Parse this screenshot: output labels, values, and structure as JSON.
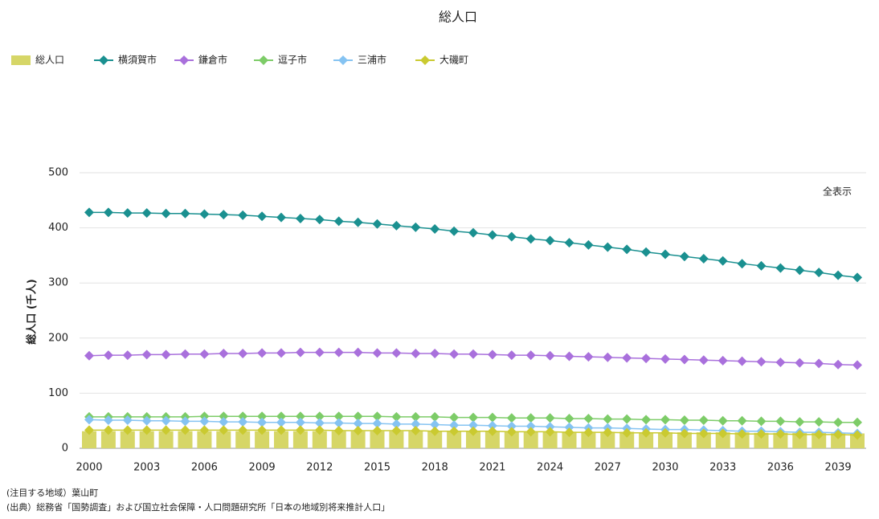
{
  "chart_data": {
    "type": "bar-line",
    "title": "総人口",
    "y_label": "総人口 (千人)",
    "button": "全表示",
    "notes": [
      "(注目する地域）葉山町",
      "(出典）総務省「国勢調査」および国立社会保障・人口問題研究所「日本の地域別将来推計人口」"
    ],
    "categories": [
      "2000",
      null,
      null,
      "2003",
      null,
      null,
      "2006",
      null,
      null,
      "2009",
      null,
      null,
      "2012",
      null,
      null,
      "2015",
      null,
      null,
      "2018",
      null,
      null,
      "2021",
      null,
      null,
      "2024",
      null,
      null,
      "2027",
      null,
      null,
      "2030",
      null,
      null,
      "2033",
      null,
      null,
      "2036",
      null,
      null,
      "2039",
      null
    ],
    "ylim": [
      0,
      500
    ],
    "yticks": [
      0,
      100,
      200,
      300,
      400,
      500
    ],
    "grid": true,
    "series": [
      {
        "name": "総人口",
        "kind": "bar",
        "color": "#d6d667",
        "values": [
          31,
          31,
          31,
          31,
          31,
          31,
          31,
          31,
          31,
          31,
          31,
          31,
          31,
          31,
          31,
          31,
          31,
          31,
          31,
          31,
          31,
          30,
          30,
          30,
          30,
          30,
          30,
          30,
          30,
          29,
          29,
          29,
          29,
          29,
          29,
          28,
          28,
          28,
          28,
          27,
          27
        ]
      },
      {
        "name": "横須賀市",
        "kind": "line",
        "color": "#1a9090",
        "values": [
          428,
          428,
          427,
          427,
          426,
          426,
          425,
          424,
          423,
          421,
          419,
          417,
          415,
          412,
          410,
          407,
          404,
          401,
          398,
          394,
          391,
          387,
          384,
          380,
          377,
          373,
          369,
          365,
          361,
          356,
          352,
          348,
          344,
          340,
          335,
          331,
          327,
          323,
          319,
          314,
          310
        ]
      },
      {
        "name": "鎌倉市",
        "kind": "line",
        "color": "#a970dc",
        "values": [
          168,
          169,
          169,
          170,
          170,
          171,
          171,
          172,
          172,
          173,
          173,
          174,
          174,
          174,
          174,
          173,
          173,
          172,
          172,
          171,
          171,
          170,
          169,
          169,
          168,
          167,
          166,
          165,
          164,
          163,
          162,
          161,
          160,
          159,
          158,
          157,
          156,
          155,
          154,
          152,
          151
        ]
      },
      {
        "name": "逗子市",
        "kind": "line",
        "color": "#7dcc68",
        "values": [
          57,
          57,
          57,
          57,
          57,
          57,
          58,
          58,
          58,
          58,
          58,
          58,
          58,
          58,
          58,
          58,
          57,
          57,
          57,
          56,
          56,
          56,
          55,
          55,
          55,
          54,
          54,
          53,
          53,
          52,
          52,
          51,
          51,
          50,
          50,
          49,
          49,
          48,
          48,
          47,
          47
        ]
      },
      {
        "name": "三浦市",
        "kind": "line",
        "color": "#85c3f2",
        "values": [
          52,
          51,
          51,
          50,
          50,
          49,
          49,
          48,
          48,
          47,
          47,
          47,
          46,
          46,
          45,
          45,
          44,
          44,
          43,
          42,
          42,
          41,
          40,
          40,
          39,
          38,
          37,
          37,
          36,
          35,
          34,
          34,
          33,
          32,
          31,
          31,
          30,
          29,
          29,
          28,
          27
        ]
      },
      {
        "name": "大磯町",
        "kind": "line",
        "color": "#caca30",
        "values": [
          33,
          33,
          33,
          33,
          33,
          33,
          33,
          33,
          33,
          33,
          33,
          33,
          33,
          32,
          32,
          32,
          32,
          32,
          31,
          31,
          31,
          31,
          30,
          30,
          30,
          29,
          29,
          29,
          28,
          28,
          28,
          27,
          27,
          27,
          26,
          26,
          26,
          25,
          25,
          25,
          24
        ]
      }
    ]
  }
}
